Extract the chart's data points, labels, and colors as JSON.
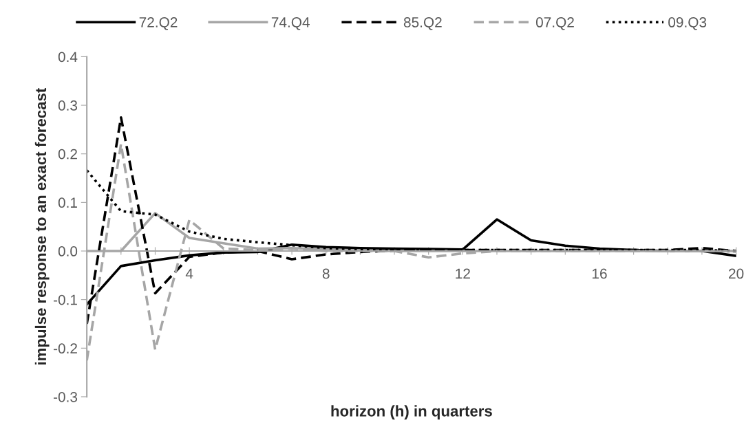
{
  "chart_data": {
    "type": "line",
    "xlabel": "horizon (h) in quarters",
    "ylabel": "impulse response to an exact forecast",
    "x": [
      1,
      2,
      3,
      4,
      5,
      6,
      7,
      8,
      9,
      10,
      11,
      12,
      13,
      14,
      15,
      16,
      17,
      18,
      19,
      20
    ],
    "series": [
      {
        "name": "72.Q2",
        "color": "#000000",
        "line_style": "solid",
        "values": [
          -0.11,
          -0.031,
          -0.019,
          -0.009,
          -0.003,
          -0.002,
          0.013,
          0.008,
          0.006,
          0.005,
          0.004,
          0.003,
          0.065,
          0.022,
          0.011,
          0.005,
          0.002,
          0,
          0,
          -0.01
        ]
      },
      {
        "name": "74.Q4",
        "color": "#a6a6a6",
        "line_style": "solid",
        "values": [
          0,
          0,
          0.078,
          0.027,
          0.016,
          0.005,
          0.006,
          0.003,
          0.001,
          0,
          0,
          0,
          0,
          0,
          0,
          0,
          0,
          0,
          0,
          0
        ]
      },
      {
        "name": "85.Q2",
        "color": "#000000",
        "line_style": "dashed",
        "values": [
          -0.15,
          0.275,
          -0.087,
          -0.012,
          -0.003,
          0,
          -0.017,
          -0.007,
          -0.002,
          0.001,
          0.002,
          0.002,
          0.002,
          0.002,
          0.002,
          0.002,
          0.002,
          0.002,
          0.006,
          0
        ]
      },
      {
        "name": "07.Q2",
        "color": "#a6a6a6",
        "line_style": "dashed",
        "values": [
          -0.225,
          0.22,
          -0.203,
          0.064,
          0.005,
          0.002,
          0.005,
          0,
          0,
          0,
          -0.013,
          -0.005,
          0,
          0,
          0,
          0,
          0,
          0,
          0,
          0
        ]
      },
      {
        "name": "09.Q3",
        "color": "#000000",
        "line_style": "dotted",
        "values": [
          0.166,
          0.082,
          0.075,
          0.04,
          0.025,
          0.018,
          0.012,
          0.006,
          0.004,
          0.003,
          0.002,
          0.002,
          0.002,
          0.002,
          0.002,
          0.002,
          0.002,
          0.002,
          0.002,
          0
        ]
      }
    ],
    "xlim": [
      1,
      20
    ],
    "xticks": [
      {
        "value": 1,
        "label": null
      },
      {
        "value": 2,
        "label": null
      },
      {
        "value": 3,
        "label": null
      },
      4,
      {
        "value": 5,
        "label": null
      },
      {
        "value": 6,
        "label": null
      },
      {
        "value": 7,
        "label": null
      },
      8,
      {
        "value": 9,
        "label": null
      },
      {
        "value": 10,
        "label": null
      },
      {
        "value": 11,
        "label": null
      },
      12,
      {
        "value": 13,
        "label": null
      },
      {
        "value": 14,
        "label": null
      },
      {
        "value": 15,
        "label": null
      },
      16,
      {
        "value": 17,
        "label": null
      },
      {
        "value": 18,
        "label": null
      },
      {
        "value": 19,
        "label": null
      },
      20
    ],
    "ylim": [
      -0.3,
      0.4
    ],
    "yticks": [
      {
        "value": -0.3,
        "label": "-0.3"
      },
      {
        "value": -0.2,
        "label": "-0.2"
      },
      {
        "value": -0.1,
        "label": "-0.1"
      },
      {
        "value": 0,
        "label": "0.0"
      },
      {
        "value": 0.1,
        "label": "0.1"
      },
      {
        "value": 0.2,
        "label": "0.2"
      },
      {
        "value": 0.3,
        "label": "0.3"
      },
      {
        "value": 0.4,
        "label": "0.4"
      }
    ],
    "grid": false,
    "legend": "top"
  }
}
